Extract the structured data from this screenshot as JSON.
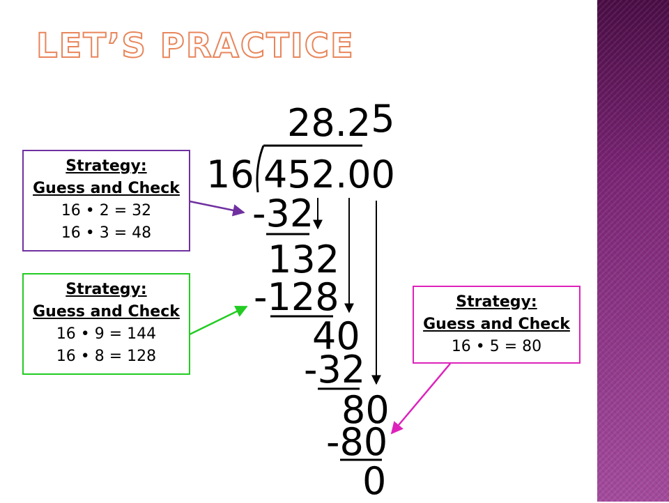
{
  "title": "LET’S PRACTICE",
  "colors": {
    "title_outline": "#e8855a",
    "box_purple": "#7030a0",
    "box_green": "#22cc22",
    "box_magenta": "#dd22bb",
    "side_band": "#8a2f84"
  },
  "division": {
    "quotient_main": "28.2",
    "quotient_extra": "5",
    "divisor": "16",
    "dividend": "452.00",
    "step1_sub": "-32",
    "step1_rem": "132",
    "step2_sub": "-128",
    "step2_rem": "40",
    "step3_sub": "-32",
    "step3_rem": "80",
    "step4_sub": "-80",
    "final": "0"
  },
  "boxes": [
    {
      "heading1": "Strategy:",
      "heading2": "Guess and Check",
      "lines": [
        "16 • 2 = 32",
        "16 • 3 = 48"
      ]
    },
    {
      "heading1": "Strategy:",
      "heading2": "Guess and Check",
      "lines": [
        "16 • 9 = 144",
        "16 • 8 = 128"
      ]
    },
    {
      "heading1": "Strategy:",
      "heading2": "Guess and Check",
      "lines": [
        "16 • 5 = 80"
      ]
    }
  ]
}
